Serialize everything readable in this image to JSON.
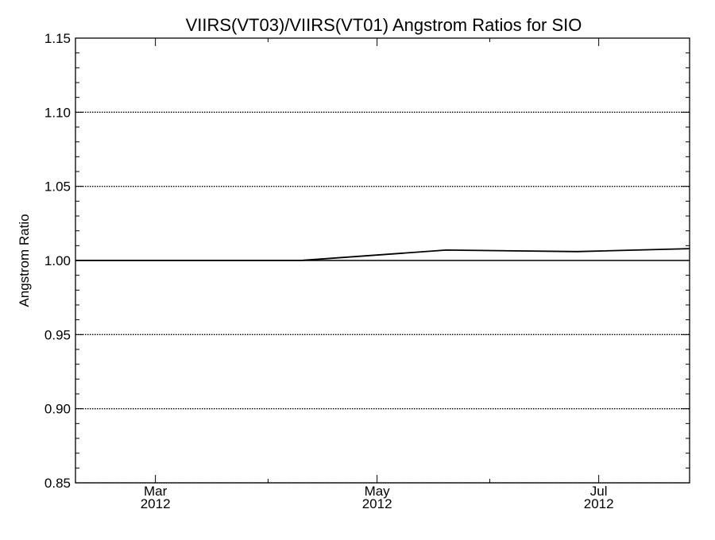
{
  "chart_data": {
    "type": "line",
    "title": "VIIRS(VT03)/VIIRS(VT01)  Angstrom Ratios for SIO",
    "xlabel": "",
    "ylabel": "Angstrom Ratio",
    "ylim": [
      0.85,
      1.15
    ],
    "y_ticks": [
      {
        "value": 0.85,
        "label": "0.85"
      },
      {
        "value": 0.9,
        "label": "0.90"
      },
      {
        "value": 0.95,
        "label": "0.95"
      },
      {
        "value": 1.0,
        "label": "1.00"
      },
      {
        "value": 1.05,
        "label": "1.05"
      },
      {
        "value": 1.1,
        "label": "1.10"
      },
      {
        "value": 1.15,
        "label": "1.15"
      }
    ],
    "y_gridlines": [
      0.85,
      0.9,
      0.95,
      1.05,
      1.1
    ],
    "reference_line": 1.0,
    "xlim": [
      "2012-02-08",
      "2012-07-26"
    ],
    "x_ticks": [
      {
        "date": "2012-03-01",
        "month": "Mar",
        "year": "2012"
      },
      {
        "date": "2012-05-01",
        "month": "May",
        "year": "2012"
      },
      {
        "date": "2012-07-01",
        "month": "Jul",
        "year": "2012"
      }
    ],
    "x_minor_ticks": [
      "2012-04-01",
      "2012-06-01"
    ],
    "grid": "horizontal dotted",
    "series": [
      {
        "x": [
          "2012-02-08",
          "2012-04-10",
          "2012-05-20",
          "2012-06-25",
          "2012-07-26"
        ],
        "y": [
          1.0,
          1.0,
          1.007,
          1.006,
          1.008
        ]
      }
    ]
  }
}
